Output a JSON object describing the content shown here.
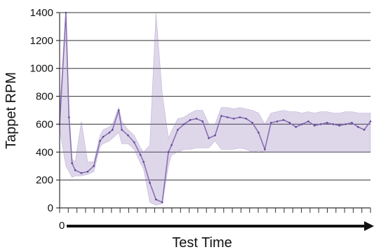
{
  "chart_data": {
    "type": "line",
    "xlabel": "Test Time",
    "ylabel": "Tappet RPM",
    "x_origin_label": "0",
    "ylim": [
      0,
      1400
    ],
    "yticks": [
      0,
      200,
      400,
      600,
      800,
      1000,
      1200,
      1400
    ],
    "grid": true,
    "series_color": "#8a6fb5",
    "x": [
      0,
      2,
      3,
      4,
      5,
      7,
      9,
      11,
      13,
      14,
      16,
      17,
      19,
      20,
      22,
      24,
      26,
      27,
      29,
      31,
      33,
      35,
      36,
      38,
      40,
      42,
      44,
      46,
      48,
      50,
      52,
      54,
      56,
      58,
      60,
      62,
      64,
      66,
      68,
      70,
      72,
      74,
      76,
      78,
      80,
      82,
      84,
      86,
      88,
      90,
      92,
      94,
      96,
      98,
      100
    ],
    "values": [
      600,
      1400,
      650,
      320,
      270,
      250,
      260,
      300,
      480,
      510,
      540,
      560,
      700,
      560,
      520,
      470,
      380,
      330,
      180,
      60,
      40,
      400,
      450,
      560,
      600,
      630,
      640,
      620,
      500,
      520,
      660,
      650,
      640,
      650,
      640,
      610,
      540,
      420,
      610,
      620,
      630,
      610,
      580,
      600,
      620,
      590,
      600,
      610,
      600,
      590,
      600,
      610,
      580,
      560,
      620
    ],
    "band_high": [
      700,
      1400,
      700,
      350,
      330,
      620,
      330,
      330,
      520,
      560,
      580,
      600,
      720,
      620,
      560,
      520,
      430,
      400,
      450,
      1400,
      820,
      500,
      550,
      640,
      650,
      680,
      700,
      700,
      600,
      600,
      720,
      720,
      710,
      720,
      710,
      700,
      680,
      600,
      680,
      690,
      700,
      690,
      690,
      680,
      690,
      680,
      690,
      690,
      680,
      680,
      690,
      690,
      680,
      680,
      680
    ],
    "band_low": [
      560,
      300,
      260,
      220,
      230,
      230,
      240,
      260,
      440,
      460,
      480,
      500,
      540,
      460,
      460,
      420,
      320,
      280,
      40,
      20,
      30,
      300,
      380,
      400,
      420,
      420,
      430,
      430,
      430,
      480,
      420,
      420,
      420,
      430,
      420,
      400,
      410,
      400,
      400,
      400,
      400,
      400,
      400,
      400,
      400,
      400,
      400,
      400,
      400,
      400,
      400,
      400,
      400,
      400,
      400
    ]
  }
}
